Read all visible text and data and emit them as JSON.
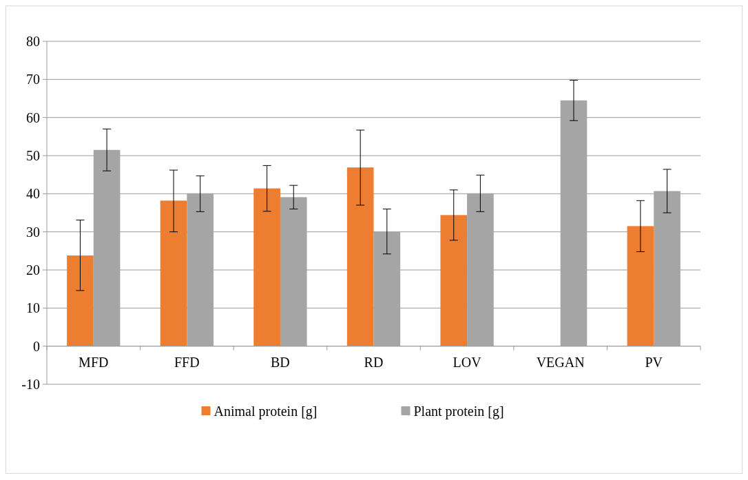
{
  "chart_data": {
    "type": "bar",
    "categories": [
      "MFD",
      "FFD",
      "BD",
      "RD",
      "LOV",
      "VEGAN",
      "PV"
    ],
    "series": [
      {
        "name": "Animal protein [g]",
        "color": "#ed7d31",
        "values": [
          23.8,
          38.2,
          41.4,
          46.9,
          34.4,
          0,
          31.5
        ],
        "errors": [
          [
            14.6,
            33.1
          ],
          [
            30,
            46.2
          ],
          [
            35.4,
            47.4
          ],
          [
            37,
            56.7
          ],
          [
            27.8,
            41
          ],
          null,
          [
            24.8,
            38.2
          ]
        ]
      },
      {
        "name": "Plant protein [g]",
        "color": "#a5a5a5",
        "values": [
          51.5,
          40.1,
          39.1,
          30.1,
          40.1,
          64.5,
          40.7
        ],
        "errors": [
          [
            46,
            57
          ],
          [
            35.3,
            44.7
          ],
          [
            36,
            42.2
          ],
          [
            24.2,
            36
          ],
          [
            35.3,
            44.9
          ],
          [
            59.2,
            69.8
          ],
          [
            35,
            46.4
          ]
        ]
      }
    ],
    "ylim": [
      -10,
      80
    ],
    "yticks": [
      -10,
      0,
      10,
      20,
      30,
      40,
      50,
      60,
      70,
      80
    ],
    "grid": "y",
    "legend": "bottom"
  }
}
